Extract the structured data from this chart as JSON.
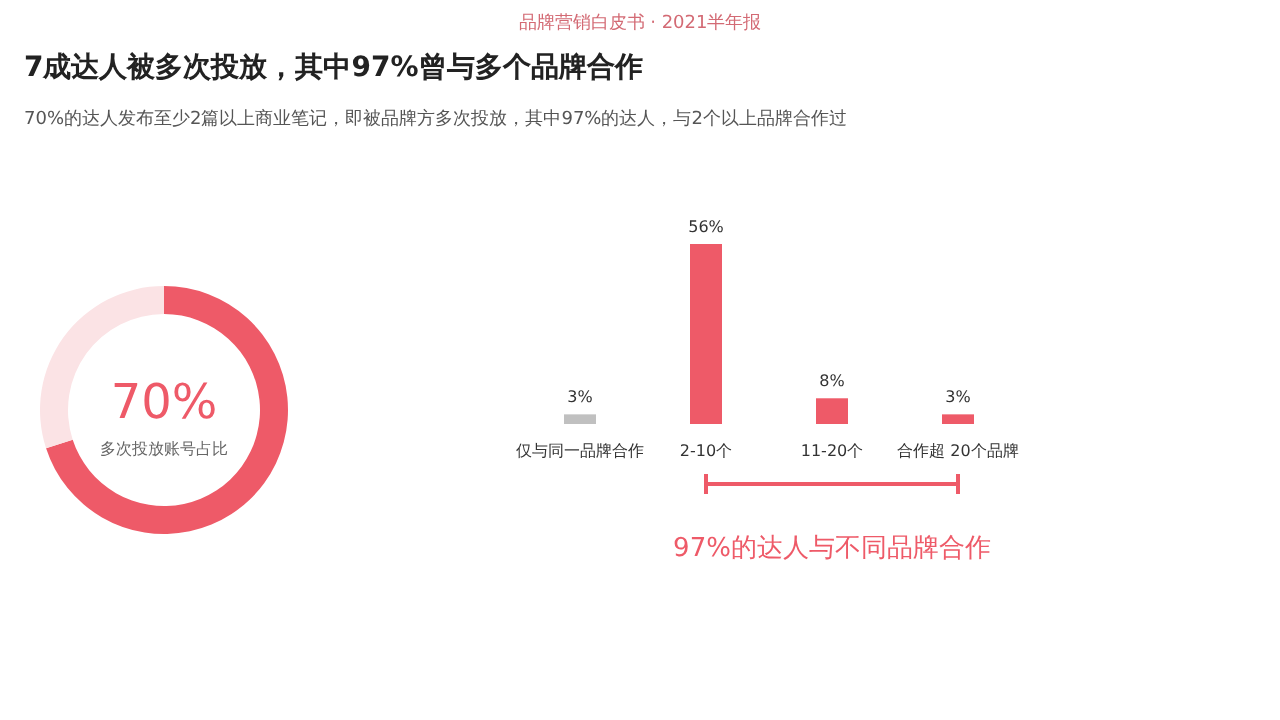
{
  "chart_data": [
    {
      "type": "donut",
      "title": "7成达人被多次投放，其中97%曾与多个品牌合作",
      "subtitle": "70%的达人发布至少2篇以上商业笔记，即被品牌方多次投放，其中97%的达人，与2个以上品牌合作过",
      "annotations": [
        "品牌营销白皮书 · 2021半年报",
        "多次投放账号占比"
      ],
      "categories": [
        null,
        null
      ],
      "values": [
        70,
        30
      ],
      "colors": [
        "#ee5a68",
        "#fbe3e5"
      ],
      "value_labels": [
        "70%",
        null
      ]
    },
    {
      "type": "bar",
      "categories": [
        "仅与同一品牌合作",
        "2-10个",
        "11-20个",
        "合作超 20个品牌"
      ],
      "values": [
        3,
        56,
        8,
        3
      ],
      "colors": [
        "#c0c0c0",
        "#ee5a68",
        "#ee5a68",
        "#ee5a68"
      ],
      "value_labels": [
        "3%",
        "56%",
        "8%",
        "3%"
      ],
      "annotations": [
        "97%的达人与不同品牌合作"
      ]
    }
  ]
}
